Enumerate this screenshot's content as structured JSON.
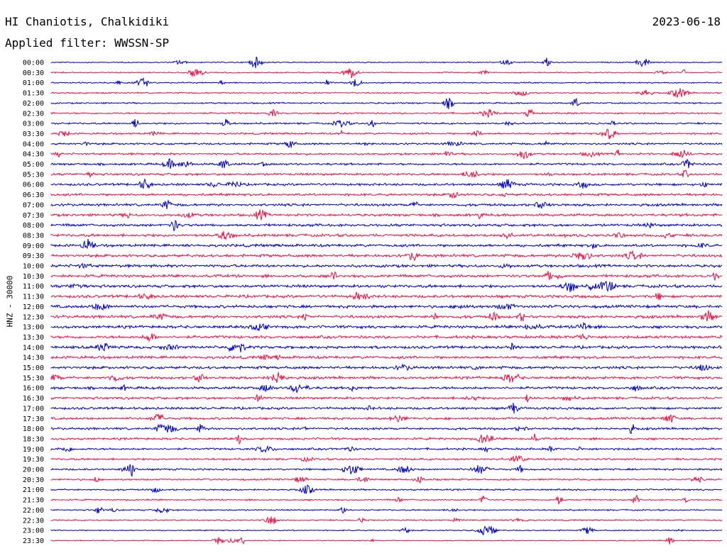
{
  "header": {
    "station": "HI Chaniotis, Chalkidiki",
    "date": "2023-06-18",
    "filter": "Applied filter: WWSSN-SP"
  },
  "colors": {
    "blue": "#0000cc",
    "red": "#ee1144"
  },
  "chart_data": {
    "type": "line",
    "title": "HI Chaniotis, Chalkidiki",
    "subtitle": "Applied filter: WWSSN-SP",
    "ylabel": "HNZ - 30000",
    "xlabel": "",
    "grid": false,
    "categories": [
      "00:00",
      "00:30",
      "01:00",
      "01:30",
      "02:00",
      "02:30",
      "03:00",
      "03:30",
      "04:00",
      "04:30",
      "05:00",
      "05:30",
      "06:00",
      "06:30",
      "07:00",
      "07:30",
      "08:00",
      "08:30",
      "09:00",
      "09:30",
      "10:00",
      "10:30",
      "11:00",
      "11:30",
      "12:00",
      "12:30",
      "13:00",
      "13:30",
      "14:00",
      "14:30",
      "15:00",
      "15:30",
      "16:00",
      "16:30",
      "17:00",
      "17:30",
      "18:00",
      "18:30",
      "19:00",
      "19:30",
      "20:00",
      "20:30",
      "21:00",
      "21:30",
      "22:00",
      "22:30",
      "23:00",
      "23:30"
    ],
    "series": [
      {
        "color": "#0000cc",
        "rows": "even"
      },
      {
        "color": "#ee1144",
        "rows": "odd"
      }
    ]
  }
}
